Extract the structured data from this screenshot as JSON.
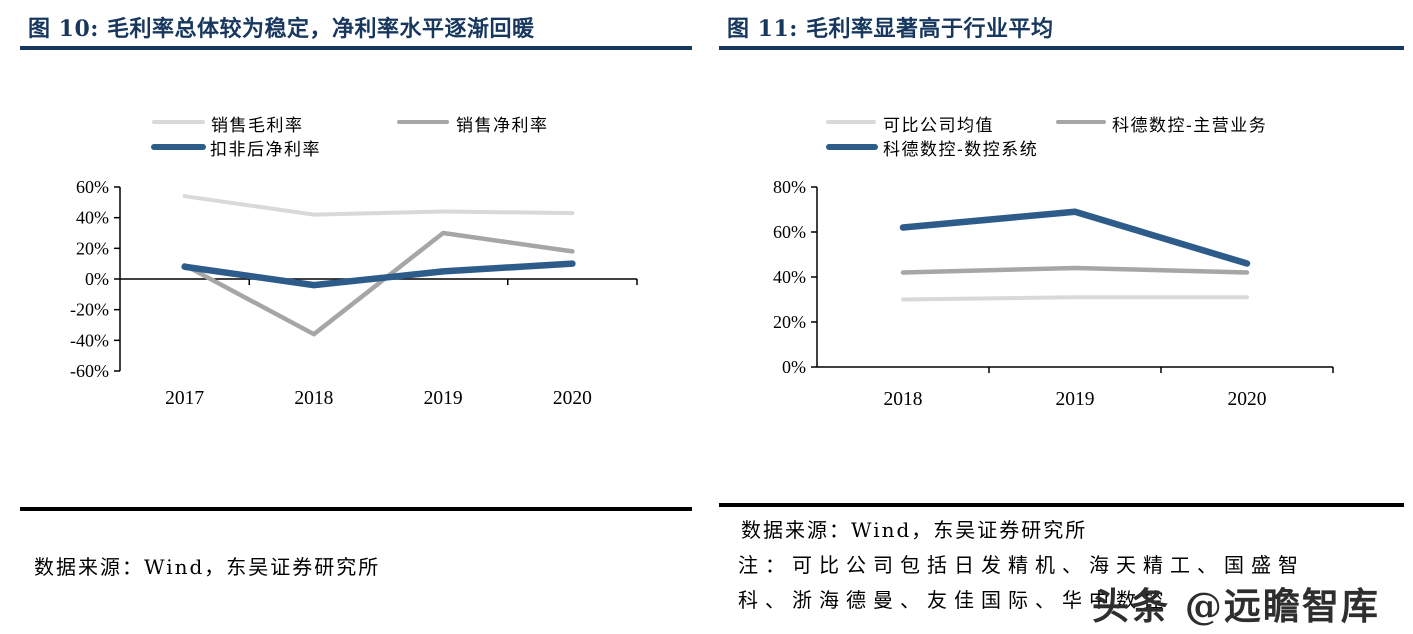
{
  "colors": {
    "title": "#17375E",
    "title_rule": "#17375E",
    "footer_rule": "#000000",
    "axis": "#000000",
    "light_gray_series": "#D9D9D9",
    "gray_series": "#A6A6A6",
    "blue_series": "#2E5C8A",
    "watermark": "#2E2E2E"
  },
  "chart_data": [
    {
      "type": "line",
      "title": "图 10:  毛利率总体较为稳定，净利率水平逐渐回暖",
      "categories": [
        "2017",
        "2018",
        "2019",
        "2020"
      ],
      "series": [
        {
          "name": "销售毛利率",
          "color": "#D9D9D9",
          "width": 4,
          "values": [
            54,
            42,
            44,
            43
          ]
        },
        {
          "name": "销售净利率",
          "color": "#A6A6A6",
          "width": 4.5,
          "values": [
            9,
            -36,
            30,
            18
          ]
        },
        {
          "name": "扣非后净利率",
          "color": "#2E5C8A",
          "width": 6.5,
          "values": [
            8,
            -4,
            5,
            10
          ]
        }
      ],
      "ylim": [
        -60,
        60
      ],
      "ytick_step": 20,
      "ytick_labels": [
        "60%",
        "40%",
        "20%",
        "0%",
        "-20%",
        "-40%",
        "-60%"
      ],
      "x_axis_at": 0,
      "grid": false,
      "legend_position": "top"
    },
    {
      "type": "line",
      "title": "图 11:  毛利率显著高于行业平均",
      "categories": [
        "2018",
        "2019",
        "2020"
      ],
      "series": [
        {
          "name": "可比公司均值",
          "color": "#D9D9D9",
          "width": 4,
          "values": [
            30,
            31,
            31
          ]
        },
        {
          "name": "科德数控-主营业务",
          "color": "#A6A6A6",
          "width": 4.5,
          "values": [
            42,
            44,
            42
          ]
        },
        {
          "name": "科德数控-数控系统",
          "color": "#2E5C8A",
          "width": 6.5,
          "values": [
            62,
            69,
            46
          ]
        }
      ],
      "ylim": [
        0,
        80
      ],
      "ytick_step": 20,
      "ytick_labels": [
        "80%",
        "60%",
        "40%",
        "20%",
        "0%"
      ],
      "x_axis_at": 0,
      "grid": false,
      "legend_position": "top"
    }
  ],
  "left_panel": {
    "source": "数据来源：Wind，东吴证券研究所"
  },
  "right_panel": {
    "source": "数据来源：Wind，东吴证券研究所",
    "note_lines": [
      "注：可比公司包括日发精机、海天精工、国盛智",
      "科、浙海德曼、友佳国际、华中数控"
    ],
    "watermark": "头条 @远瞻智库"
  }
}
